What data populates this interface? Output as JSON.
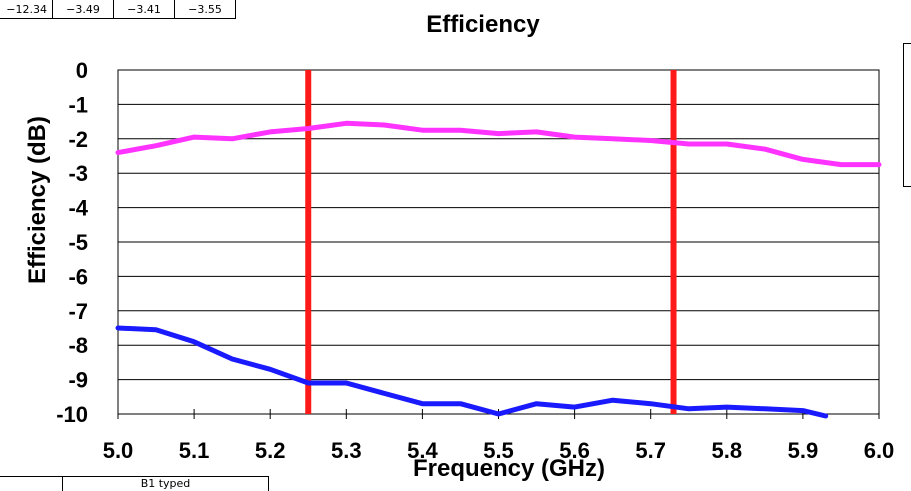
{
  "top_table": {
    "cells": [
      "−12.34",
      "−3.49",
      "−3.41",
      "−3.55"
    ]
  },
  "bottom_table": {
    "cells": [
      "",
      "B1 typed"
    ]
  },
  "chart_data": {
    "type": "line",
    "title": "Efficiency",
    "xlabel": "Frequency (GHz)",
    "ylabel": "Efficiency (dB)",
    "xlim": [
      5.0,
      6.0
    ],
    "ylim": [
      -10,
      0
    ],
    "x_ticks": [
      "5.0",
      "5.1",
      "5.2",
      "5.3",
      "5.4",
      "5.5",
      "5.6",
      "5.7",
      "5.8",
      "5.9",
      "6.0"
    ],
    "y_ticks": [
      "0",
      "-1",
      "-2",
      "-3",
      "-4",
      "-5",
      "-6",
      "-7",
      "-8",
      "-9",
      "-10"
    ],
    "grid": "horizontal",
    "vlines": [
      {
        "x": 5.25,
        "color": "#ff1a1a"
      },
      {
        "x": 5.73,
        "color": "#ff1a1a"
      }
    ],
    "series": [
      {
        "color": "#ff33ff",
        "x": [
          5.0,
          5.05,
          5.1,
          5.15,
          5.2,
          5.25,
          5.3,
          5.35,
          5.4,
          5.45,
          5.5,
          5.55,
          5.6,
          5.65,
          5.7,
          5.75,
          5.8,
          5.85,
          5.9,
          5.95,
          6.0
        ],
        "y": [
          -2.4,
          -2.2,
          -1.95,
          -2.0,
          -1.8,
          -1.7,
          -1.55,
          -1.6,
          -1.75,
          -1.75,
          -1.85,
          -1.8,
          -1.95,
          -2.0,
          -2.05,
          -2.15,
          -2.15,
          -2.3,
          -2.6,
          -2.75,
          -2.75
        ]
      },
      {
        "color": "#1a1aff",
        "x": [
          5.0,
          5.05,
          5.1,
          5.15,
          5.2,
          5.25,
          5.3,
          5.35,
          5.4,
          5.45,
          5.5,
          5.55,
          5.6,
          5.65,
          5.7,
          5.75,
          5.8,
          5.85,
          5.9,
          5.93
        ],
        "y": [
          -7.5,
          -7.55,
          -7.9,
          -8.4,
          -8.7,
          -9.1,
          -9.1,
          -9.4,
          -9.7,
          -9.7,
          -10.0,
          -9.7,
          -9.8,
          -9.6,
          -9.7,
          -9.85,
          -9.8,
          -9.85,
          -9.9,
          -10.15
        ]
      }
    ]
  }
}
